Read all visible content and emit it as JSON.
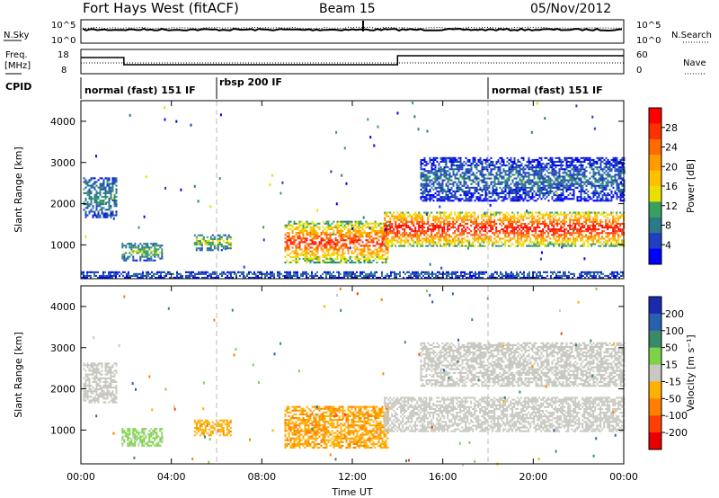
{
  "header": {
    "title": "Fort Hays West (fitACF)",
    "beam": "Beam 15",
    "date": "05/Nov/2012"
  },
  "status_panels": {
    "nsky_label": "N.Sky",
    "nsky_ticks": [
      "10^5",
      "10^0"
    ],
    "nsearch_label": "N.Search",
    "nsearch_ticks": [
      "10^5",
      "10^0"
    ],
    "freq_label_1": "Freq.",
    "freq_label_2": "[MHz]",
    "freq_ticks": [
      "18",
      "8"
    ],
    "nave_label": "Nave",
    "nave_ticks": [
      "60",
      "0"
    ],
    "cpid_label": "CPID",
    "cpid_segments": [
      {
        "text": "normal (fast) 151 IF",
        "start_hour": 0
      },
      {
        "text": "rbsp 200 IF",
        "start_hour": 6
      },
      {
        "text": "normal (fast) 151 IF",
        "start_hour": 18
      }
    ]
  },
  "power_colorbar": {
    "label": "Power [dB]",
    "ticks": [
      "28",
      "24",
      "20",
      "16",
      "12",
      "8",
      "4"
    ],
    "colors": [
      "#ff0000",
      "#ff3000",
      "#ff6a00",
      "#ff9a00",
      "#ffc000",
      "#e9e000",
      "#3aa060",
      "#2a7a8a",
      "#2040c0",
      "#0000ff"
    ]
  },
  "velocity_colorbar": {
    "label": "Velocity [m s⁻¹]",
    "ticks": [
      "200",
      "100",
      "50",
      "15",
      "-15",
      "-50",
      "-100",
      "-200"
    ],
    "colors": [
      "#1a2aaa",
      "#2a60b0",
      "#3a8a6a",
      "#7ed24a",
      "#c8c8c0",
      "#ffb000",
      "#ff8000",
      "#ff4000",
      "#e80000"
    ]
  },
  "chart_data": {
    "type": "heatmap",
    "xlabel": "Time UT",
    "x_ticks": [
      "00:00",
      "04:00",
      "08:00",
      "12:00",
      "16:00",
      "20:00",
      "00:00"
    ],
    "x_range_hours": [
      0,
      24
    ],
    "ylabel": "Slant Range [km]",
    "y_ticks": [
      "4000",
      "3000",
      "2000",
      "1000"
    ],
    "y_range_km": [
      180,
      4500
    ],
    "dashed_time_markers_hours": [
      6,
      18
    ],
    "panels": [
      {
        "quantity": "Power",
        "unit": "dB",
        "range": [
          0,
          30
        ],
        "echo_regions": [
          {
            "t0": 0.1,
            "t1": 1.6,
            "r0": 1650,
            "r1": 2600,
            "value": 8
          },
          {
            "t0": 1.8,
            "t1": 3.6,
            "r0": 600,
            "r1": 1050,
            "value": 10
          },
          {
            "t0": 5.0,
            "t1": 6.6,
            "r0": 850,
            "r1": 1250,
            "value": 12
          },
          {
            "t0": 9.0,
            "t1": 13.6,
            "r0": 550,
            "r1": 1550,
            "value": 22
          },
          {
            "t0": 13.4,
            "t1": 24.0,
            "r0": 950,
            "r1": 1800,
            "value": 24
          },
          {
            "t0": 15.0,
            "t1": 24.0,
            "r0": 2050,
            "r1": 3100,
            "value": 6
          },
          {
            "t0": 0.0,
            "t1": 24.0,
            "r0": 180,
            "r1": 330,
            "value": 6
          }
        ]
      },
      {
        "quantity": "Velocity",
        "unit": "m s⁻¹",
        "range": [
          -200,
          200
        ],
        "echo_regions": [
          {
            "t0": 0.1,
            "t1": 1.6,
            "r0": 1650,
            "r1": 2600,
            "value": 0
          },
          {
            "t0": 1.8,
            "t1": 3.6,
            "r0": 600,
            "r1": 1050,
            "value": 25
          },
          {
            "t0": 5.0,
            "t1": 6.6,
            "r0": 850,
            "r1": 1250,
            "value": -40
          },
          {
            "t0": 9.0,
            "t1": 13.6,
            "r0": 550,
            "r1": 1550,
            "value": -45
          },
          {
            "t0": 13.4,
            "t1": 24.0,
            "r0": 950,
            "r1": 1800,
            "value": 0
          },
          {
            "t0": 15.0,
            "t1": 24.0,
            "r0": 2050,
            "r1": 3100,
            "value": 0
          }
        ]
      }
    ]
  }
}
